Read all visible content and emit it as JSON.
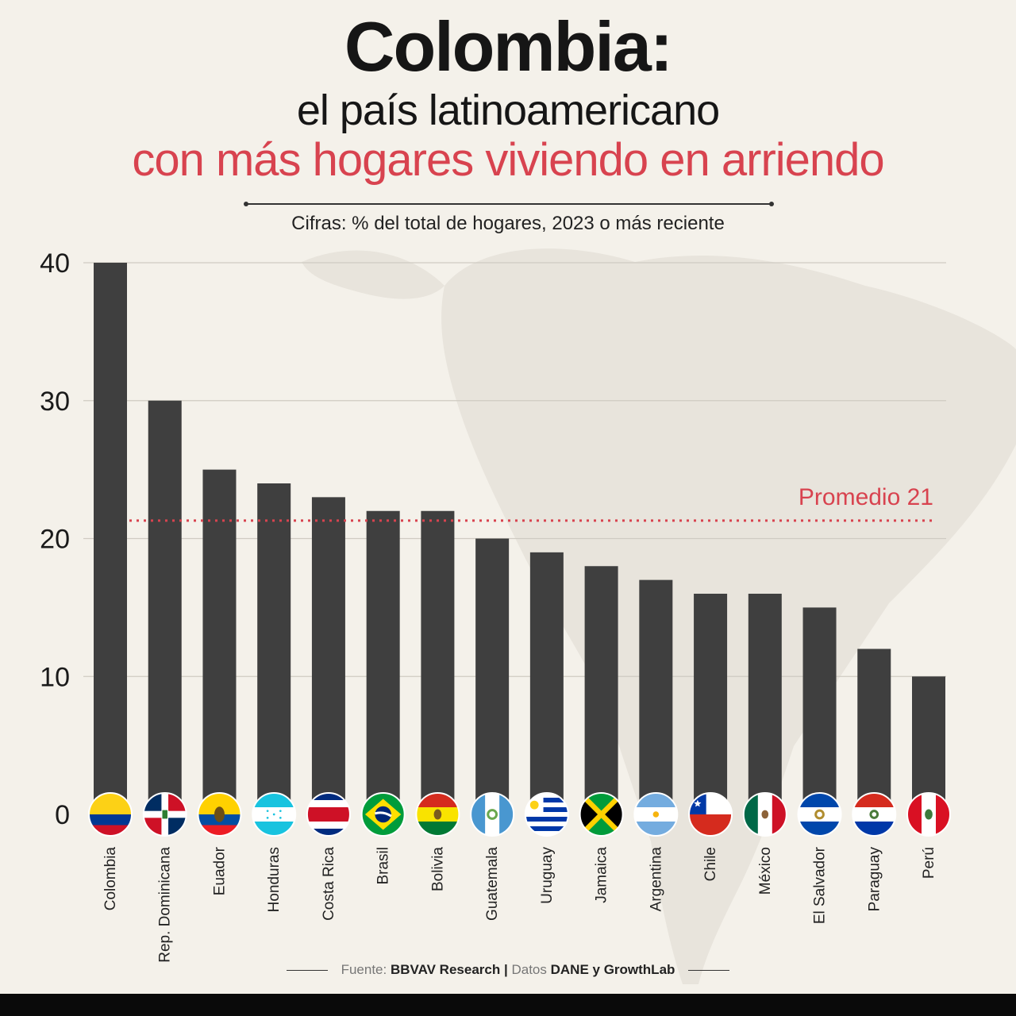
{
  "title": "Colombia:",
  "subtitle_line1": "el país latinoamericano",
  "subtitle_line2": "con más hogares viviendo en arriendo",
  "description": "Cifras: % del total de hogares, 2023 o más reciente",
  "footer": {
    "prefix": "Fuente:",
    "source": "BBVAV Research",
    "separator": "|",
    "data_prefix": "Datos",
    "data_source": "DANE y GrowthLab"
  },
  "colors": {
    "bar": "#3f3f3f",
    "accent": "#d8434f",
    "background": "#f4f1ea",
    "grid": "#cfcbc2"
  },
  "chart_data": {
    "type": "bar",
    "categories": [
      "Colombia",
      "Rep. Dominicana",
      "Euador",
      "Honduras",
      "Costa Rica",
      "Brasil",
      "Bolivia",
      "Guatemala",
      "Uruguay",
      "Jamaica",
      "Argentina",
      "Chile",
      "México",
      "El Salvador",
      "Paraguay",
      "Perú"
    ],
    "values": [
      40,
      30,
      25,
      24,
      23,
      22,
      22,
      20,
      19,
      18,
      17,
      16,
      16,
      15,
      12,
      10
    ],
    "flags": [
      "flag-colombia-icon",
      "flag-dominican-republic-icon",
      "flag-ecuador-icon",
      "flag-honduras-icon",
      "flag-costa-rica-icon",
      "flag-brazil-icon",
      "flag-bolivia-icon",
      "flag-guatemala-icon",
      "flag-uruguay-icon",
      "flag-jamaica-icon",
      "flag-argentina-icon",
      "flag-chile-icon",
      "flag-mexico-icon",
      "flag-el-salvador-icon",
      "flag-paraguay-icon",
      "flag-peru-icon"
    ],
    "y_ticks": [
      0,
      10,
      20,
      30,
      40
    ],
    "ylim": [
      0,
      40
    ],
    "grid": true,
    "reference_line": {
      "label": "Promedio 21",
      "value": 21.3
    }
  }
}
